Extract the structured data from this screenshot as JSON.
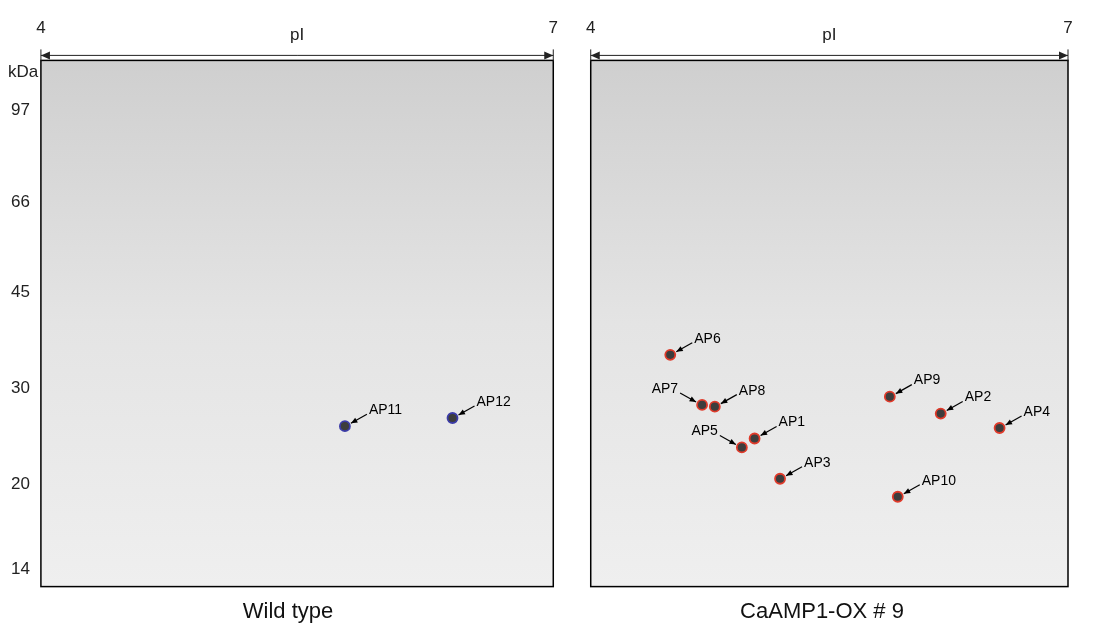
{
  "chart_data": [
    {
      "type": "scatter",
      "title": "Wild type",
      "x_label": "pI",
      "y_label": "kDa",
      "xlim": [
        4,
        7
      ],
      "xticks": [
        4,
        7
      ],
      "ylim": [
        13,
        120
      ],
      "yticks": [
        97,
        66,
        45,
        30,
        20,
        14
      ],
      "log": "y",
      "grid": false,
      "color": "#3b3ba8",
      "marker": "circle",
      "points": [
        {
          "label": "AP11",
          "x": 5.78,
          "y": 25.6
        },
        {
          "label": "AP12",
          "x": 6.41,
          "y": 26.5
        }
      ]
    },
    {
      "type": "scatter",
      "title": "CaAMP1-OX # 9",
      "x_label": "pI",
      "xlim": [
        4,
        7
      ],
      "xticks": [
        4,
        7
      ],
      "ylim": [
        13,
        120
      ],
      "yticks": [
        97,
        66,
        45,
        30,
        20,
        14
      ],
      "log": "y",
      "grid": false,
      "tick_labels": "x",
      "color": "#e03a2a",
      "marker": "circle",
      "points": [
        {
          "label": "AP1",
          "x": 5.03,
          "y": 24.3
        },
        {
          "label": "AP2",
          "x": 6.2,
          "y": 27.0
        },
        {
          "label": "AP3",
          "x": 5.19,
          "y": 20.5
        },
        {
          "label": "AP4",
          "x": 6.57,
          "y": 25.4
        },
        {
          "label": "AP5",
          "x": 4.95,
          "y": 23.4
        },
        {
          "label": "AP6",
          "x": 4.5,
          "y": 34.6
        },
        {
          "label": "AP7",
          "x": 4.7,
          "y": 28.0
        },
        {
          "label": "AP8",
          "x": 4.78,
          "y": 27.8
        },
        {
          "label": "AP9",
          "x": 5.88,
          "y": 29.0
        },
        {
          "label": "AP10",
          "x": 5.93,
          "y": 19.0
        }
      ]
    }
  ]
}
